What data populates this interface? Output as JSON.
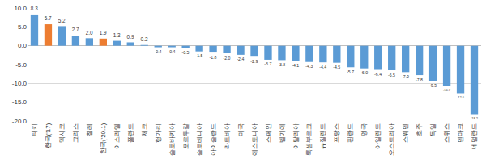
{
  "chart_data": {
    "type": "bar",
    "categories": [
      "터키",
      "한국('17)",
      "멕시코",
      "그리스",
      "칠레",
      "한국('20.1)",
      "이스라엘",
      "폴란드",
      "체코",
      "헝가리",
      "슬로바키아",
      "포르투갈",
      "슬로베니아",
      "아이슬란드",
      "라트비아",
      "미국",
      "에스토니아",
      "스페인",
      "벨기에",
      "이탈리아",
      "룩셈부르크",
      "뉴질랜드",
      "프랑스",
      "핀란드",
      "영국",
      "아일랜드",
      "오스트리아",
      "스웨덴",
      "호주",
      "독일",
      "스위스",
      "덴마크",
      "네덜란드"
    ],
    "values": [
      8.3,
      5.7,
      5.2,
      2.7,
      2.0,
      1.9,
      1.3,
      0.9,
      0.2,
      -0.4,
      -0.4,
      -0.5,
      -1.5,
      -1.8,
      -2.0,
      -2.4,
      -2.9,
      -3.7,
      -3.8,
      -4.1,
      -4.3,
      -4.4,
      -4.5,
      -5.7,
      -6.0,
      -6.4,
      -6.5,
      -7.0,
      -7.8,
      -9.3,
      -10.7,
      -12.6,
      -18.2
    ],
    "value_labels": [
      "8.3",
      "5.7",
      "5.2",
      "2.7",
      "2.0",
      "1.9",
      "1.3",
      "0.9",
      "0.2",
      "-0.4",
      "-0.4",
      "-0.5",
      "-1.5",
      "-1.8",
      "-2.0",
      "-2.4",
      "-2.9",
      "-3.7",
      "-3.8",
      "-4.1",
      "-4.3",
      "-4.4",
      "-4.5",
      "-5.7",
      "-6.0",
      "-6.4",
      "-6.5",
      "-7.0",
      "-7.8",
      "-9.3",
      "-10.7",
      "-12.6",
      "-18.2"
    ],
    "colors": [
      "#5b9bd5",
      "#ed7d31",
      "#5b9bd5",
      "#5b9bd5",
      "#5b9bd5",
      "#ed7d31",
      "#5b9bd5",
      "#5b9bd5",
      "#5b9bd5",
      "#5b9bd5",
      "#5b9bd5",
      "#5b9bd5",
      "#5b9bd5",
      "#5b9bd5",
      "#5b9bd5",
      "#5b9bd5",
      "#5b9bd5",
      "#5b9bd5",
      "#5b9bd5",
      "#5b9bd5",
      "#5b9bd5",
      "#5b9bd5",
      "#5b9bd5",
      "#5b9bd5",
      "#5b9bd5",
      "#5b9bd5",
      "#5b9bd5",
      "#5b9bd5",
      "#5b9bd5",
      "#5b9bd5",
      "#5b9bd5",
      "#5b9bd5",
      "#5b9bd5"
    ],
    "ylim": [
      -20,
      10
    ],
    "yticks": [
      {
        "value": -20,
        "label": "-20.0"
      },
      {
        "value": -15,
        "label": "-15.0"
      },
      {
        "value": -10,
        "label": "-10.0"
      },
      {
        "value": -5,
        "label": "-5.0"
      },
      {
        "value": 0,
        "label": "0.0"
      },
      {
        "value": 5,
        "label": "5.0"
      },
      {
        "value": 10,
        "label": "10.0"
      }
    ],
    "grid": true,
    "data_labels": true
  }
}
